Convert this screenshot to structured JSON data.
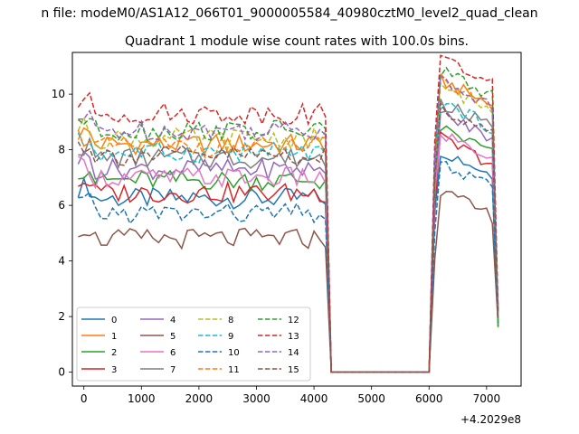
{
  "suptitle": "n file: modeM0/AS1A12_066T01_9000005584_40980cztM0_level2_quad_clean",
  "chart_data": {
    "type": "line",
    "title": "Quadrant 1 module wise count rates with 100.0s bins.",
    "xlabel": "",
    "ylabel": "",
    "x_offset_label": "+4.2029e8",
    "xlim": [
      -200,
      7600
    ],
    "ylim": [
      -0.5,
      11.5
    ],
    "xticks": [
      0,
      1000,
      2000,
      3000,
      4000,
      5000,
      6000,
      7000
    ],
    "yticks": [
      0,
      2,
      4,
      6,
      8,
      10
    ],
    "grid": false,
    "legend_position": "lower left",
    "legend_columns": 4,
    "x": [
      -100,
      0,
      100,
      200,
      300,
      400,
      500,
      600,
      700,
      800,
      900,
      1000,
      1100,
      1200,
      1300,
      1400,
      1500,
      1600,
      1700,
      1800,
      1900,
      2000,
      2100,
      2200,
      2300,
      2400,
      2500,
      2600,
      2700,
      2800,
      2900,
      3000,
      3100,
      3200,
      3300,
      3400,
      3500,
      3600,
      3700,
      3800,
      3900,
      4000,
      4100,
      4200,
      4300,
      4400,
      4500,
      4600,
      4700,
      4800,
      4900,
      5000,
      5100,
      5200,
      5300,
      5400,
      5500,
      5600,
      5700,
      5800,
      5900,
      6000,
      6100,
      6200,
      6300,
      6400,
      6500,
      6600,
      6700,
      6800,
      6900,
      7000,
      7100,
      7200
    ],
    "series": [
      {
        "name": "0",
        "color": "#1f77b4",
        "dash": "solid",
        "base": 6.25,
        "peak": 7.0
      },
      {
        "name": "1",
        "color": "#ff7f0e",
        "dash": "solid",
        "base": 8.2,
        "peak": 9.5
      },
      {
        "name": "2",
        "color": "#2ca02c",
        "dash": "solid",
        "base": 6.9,
        "peak": 7.8
      },
      {
        "name": "3",
        "color": "#d62728",
        "dash": "solid",
        "base": 6.45,
        "peak": 7.4
      },
      {
        "name": "4",
        "color": "#9467bd",
        "dash": "solid",
        "base": 7.3,
        "peak": 8.3
      },
      {
        "name": "5",
        "color": "#8c564b",
        "dash": "solid",
        "base": 4.8,
        "peak": 5.5
      },
      {
        "name": "6",
        "color": "#e377c2",
        "dash": "solid",
        "base": 7.0,
        "peak": 7.6
      },
      {
        "name": "7",
        "color": "#7f7f7f",
        "dash": "solid",
        "base": 7.7,
        "peak": 8.7
      },
      {
        "name": "8",
        "color": "#bcbd22",
        "dash": "dashed",
        "base": 8.4,
        "peak": 9.3
      },
      {
        "name": "9",
        "color": "#17becf",
        "dash": "dashed",
        "base": 7.9,
        "peak": 8.7
      },
      {
        "name": "10",
        "color": "#1f77b4",
        "dash": "dashed",
        "base": 5.7,
        "peak": 6.5
      },
      {
        "name": "11",
        "color": "#ff7f0e",
        "dash": "dashed",
        "base": 8.1,
        "peak": 9.5
      },
      {
        "name": "12",
        "color": "#2ca02c",
        "dash": "dashed",
        "base": 8.7,
        "peak": 9.8
      },
      {
        "name": "13",
        "color": "#d62728",
        "dash": "dashed",
        "base": 9.3,
        "peak": 10.3
      },
      {
        "name": "14",
        "color": "#9467bd",
        "dash": "dashed",
        "base": 8.7,
        "peak": 9.5
      },
      {
        "name": "15",
        "color": "#8c564b",
        "dash": "dashed",
        "base": 7.8,
        "peak": 8.5
      }
    ]
  }
}
